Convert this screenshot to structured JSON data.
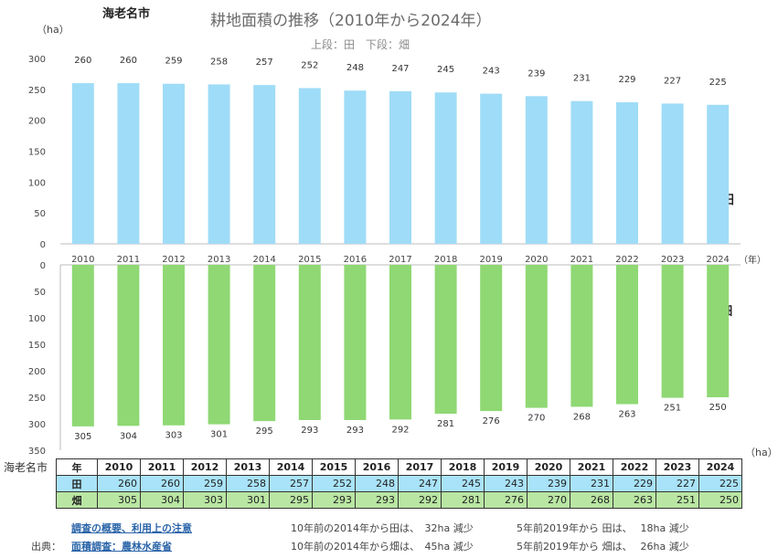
{
  "city": "海老名市",
  "title": "耕地面積の推移（2010年から2024年）",
  "subtitle": "上段：田　下段：畑",
  "unit_top": "（ha）",
  "unit_bottom": "（ha）",
  "year_unit": "（年）",
  "chart_data": [
    {
      "type": "bar",
      "series_label": "田",
      "categories": [
        "2010",
        "2011",
        "2012",
        "2013",
        "2014",
        "2015",
        "2016",
        "2017",
        "2018",
        "2019",
        "2020",
        "2021",
        "2022",
        "2023",
        "2024"
      ],
      "values": [
        260,
        260,
        259,
        258,
        257,
        252,
        248,
        247,
        245,
        243,
        239,
        231,
        229,
        227,
        225
      ],
      "ylim": [
        0,
        300
      ],
      "yticks": [
        "0",
        "50",
        "100",
        "150",
        "200",
        "250",
        "300"
      ],
      "color": "#9fdcf7"
    },
    {
      "type": "bar",
      "series_label": "畑",
      "orientation": "downward",
      "categories": [
        "2010",
        "2011",
        "2012",
        "2013",
        "2014",
        "2015",
        "2016",
        "2017",
        "2018",
        "2019",
        "2020",
        "2021",
        "2022",
        "2023",
        "2024"
      ],
      "values": [
        305,
        304,
        303,
        301,
        295,
        293,
        293,
        292,
        281,
        276,
        270,
        268,
        263,
        251,
        250
      ],
      "ylim": [
        0,
        350
      ],
      "yticks": [
        "0",
        "50",
        "100",
        "150",
        "200",
        "250",
        "300",
        "350"
      ],
      "color": "#8fd874"
    }
  ],
  "table": {
    "year_header": "年",
    "years": [
      "2010",
      "2011",
      "2012",
      "2013",
      "2014",
      "2015",
      "2016",
      "2017",
      "2018",
      "2019",
      "2020",
      "2021",
      "2022",
      "2023",
      "2024"
    ],
    "paddy_label": "田",
    "paddy": [
      "260",
      "260",
      "259",
      "258",
      "257",
      "252",
      "248",
      "247",
      "245",
      "243",
      "239",
      "231",
      "229",
      "227",
      "225"
    ],
    "field_label": "畑",
    "field": [
      "305",
      "304",
      "303",
      "301",
      "295",
      "293",
      "293",
      "292",
      "281",
      "276",
      "270",
      "268",
      "263",
      "251",
      "250"
    ]
  },
  "footer": {
    "notes_link": "調査の概要、利用上の注意",
    "source_prefix": "出典：",
    "source_link": "面積調査：農林水産省",
    "line1_a": "10年前の2014年から田は、　32ha 減少",
    "line1_b": "5年前2019年から 田は、　 18ha 減少",
    "line2_a": "10年前の2014年から畑は、　45ha 減少",
    "line2_b": "5年前2019年から 畑は、　 26ha 減少"
  }
}
